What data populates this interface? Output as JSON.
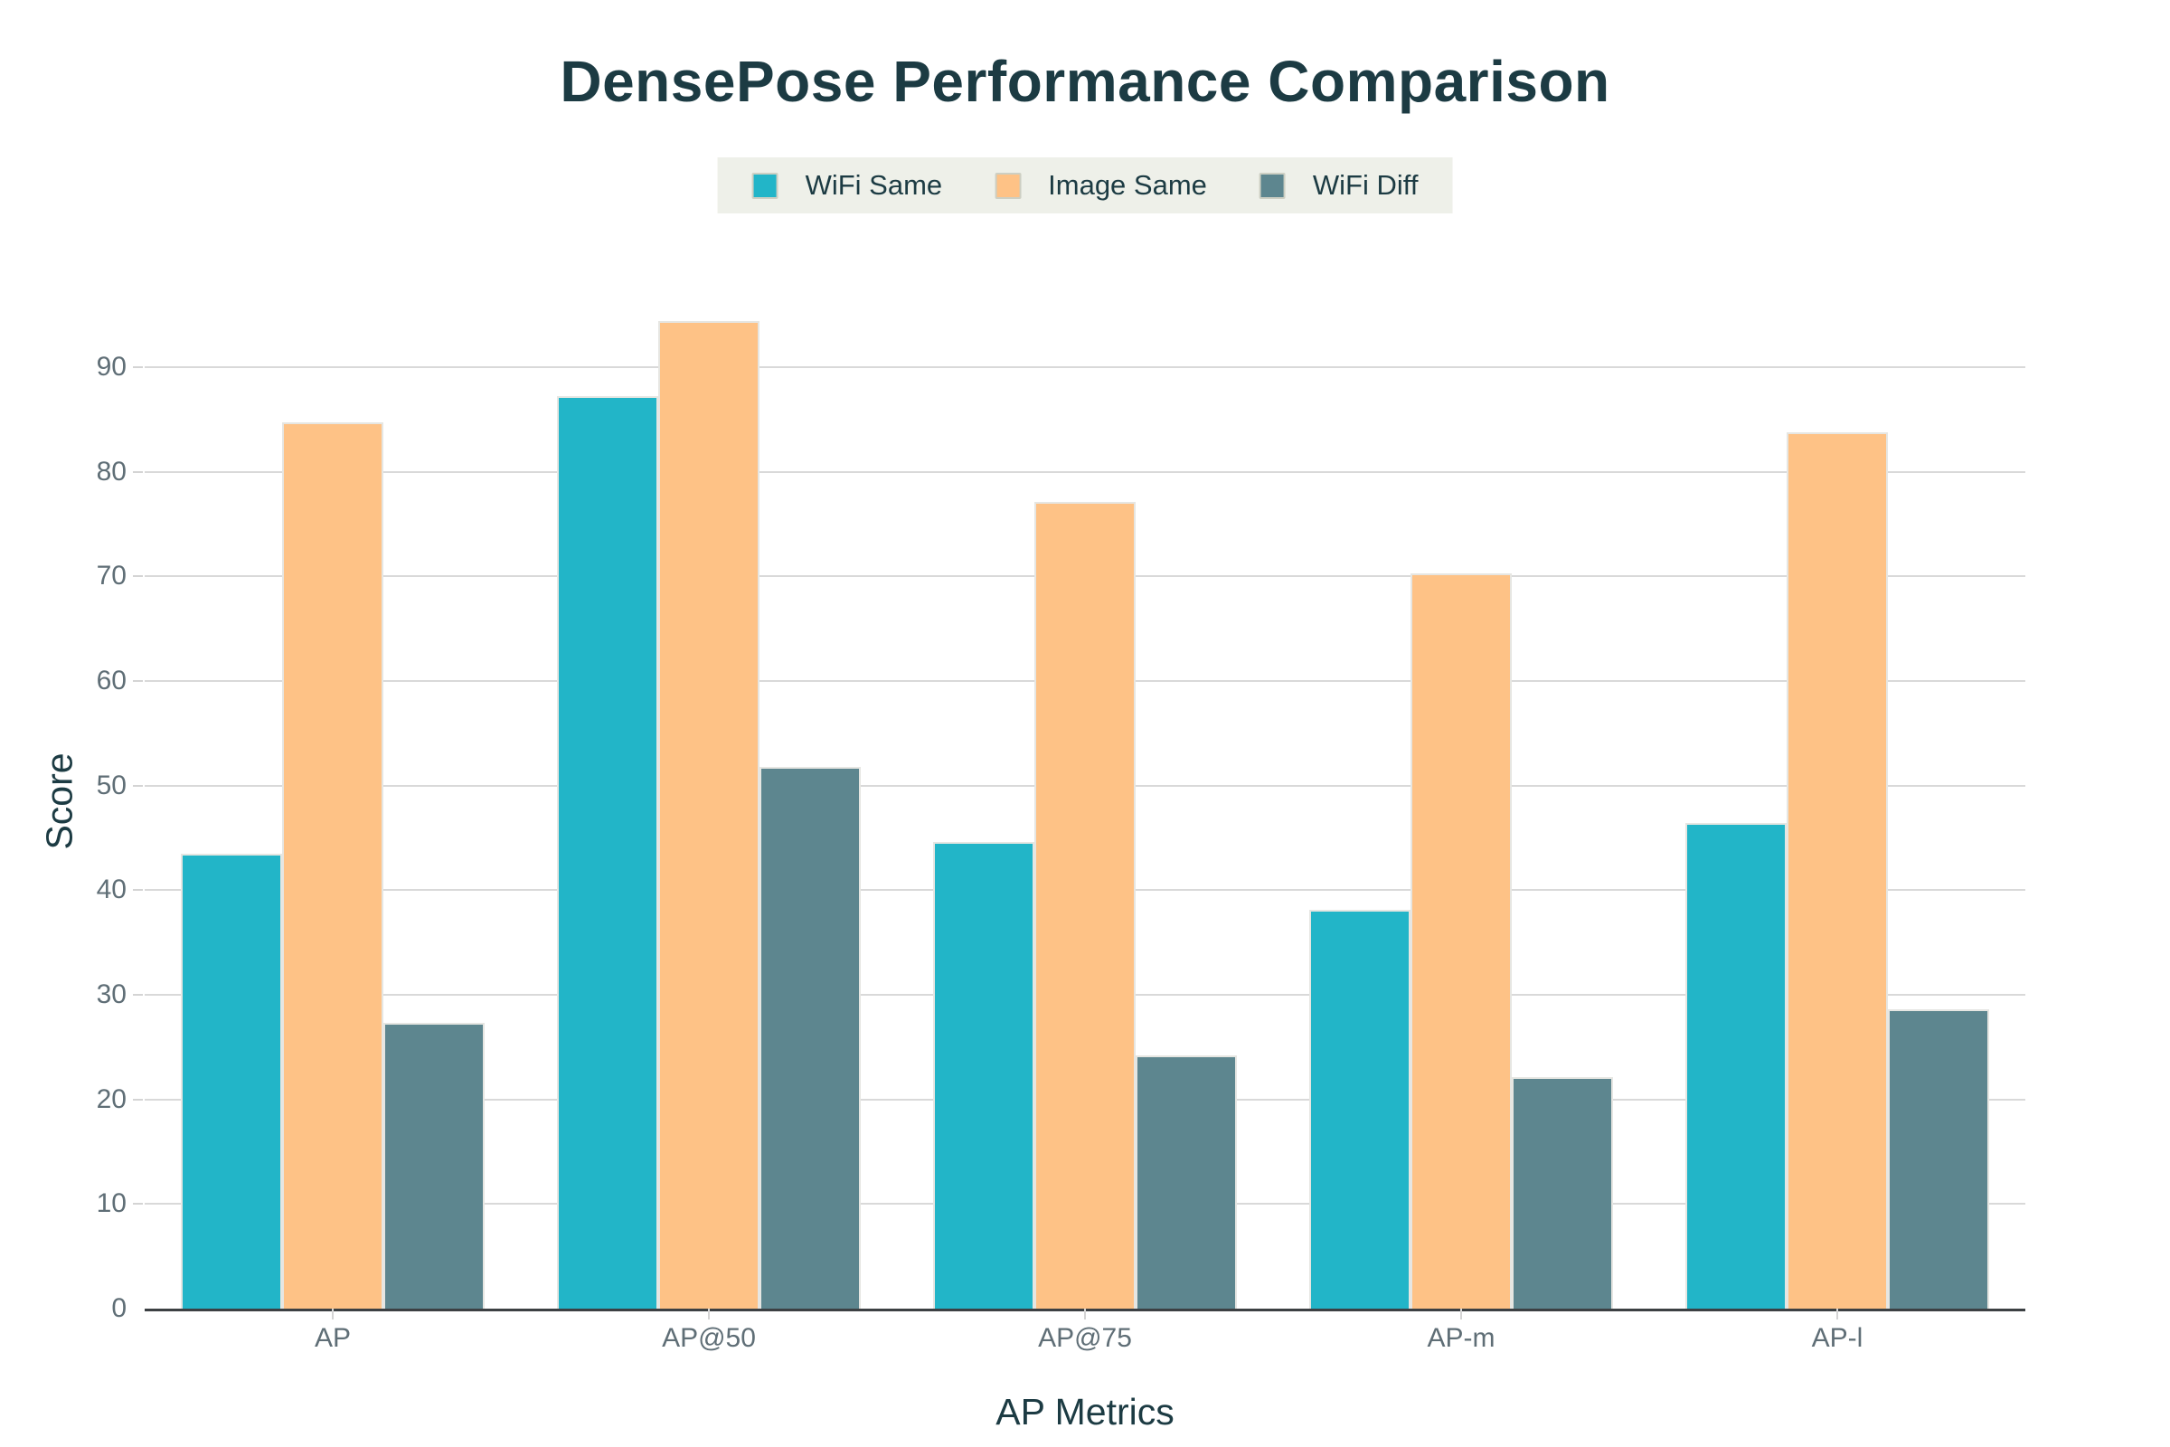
{
  "chart_data": {
    "type": "bar",
    "title": "DensePose Performance Comparison",
    "xlabel": "AP Metrics",
    "ylabel": "Score",
    "categories": [
      "AP",
      "AP@50",
      "AP@75",
      "AP-m",
      "AP-l"
    ],
    "series": [
      {
        "name": "WiFi Same",
        "color": "#22b5c8",
        "values": [
          43.5,
          87.2,
          44.6,
          38.1,
          46.4
        ]
      },
      {
        "name": "Image Same",
        "color": "#fec286",
        "values": [
          84.7,
          94.4,
          77.1,
          70.3,
          83.8
        ]
      },
      {
        "name": "WiFi Diff",
        "color": "#5d868f",
        "values": [
          27.3,
          51.8,
          24.2,
          22.1,
          28.6
        ]
      }
    ],
    "ylim": [
      0,
      97
    ],
    "yticks": [
      0,
      10,
      20,
      30,
      40,
      50,
      60,
      70,
      80,
      90
    ],
    "grid": true,
    "legend_position": "top",
    "background": "#ffffff"
  },
  "colors": {
    "title_text": "#1c3b43",
    "tick_text": "#5f6e76",
    "gridline": "#d9d9d9",
    "axis_line": "#3c4043",
    "legend_background": "#eef0e9"
  }
}
